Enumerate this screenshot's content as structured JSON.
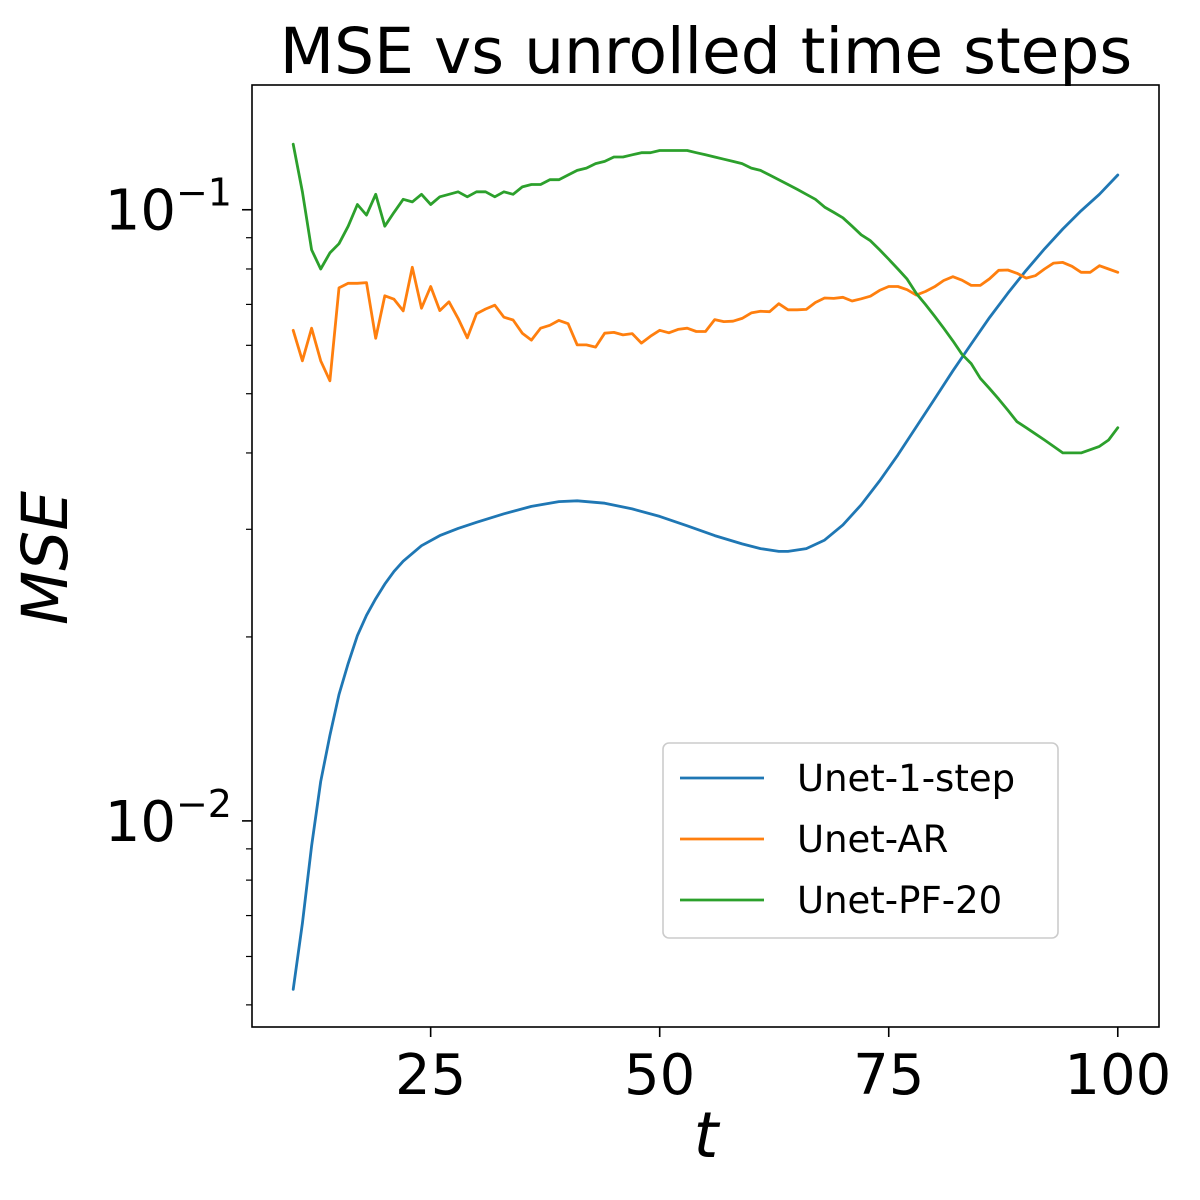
{
  "chart_data": {
    "type": "line",
    "title": "MSE vs unrolled time steps",
    "xlabel": "t",
    "ylabel": "MSE",
    "xlim": [
      5.5,
      104.5
    ],
    "ylim": [
      0.0046,
      0.16
    ],
    "yscale": "log",
    "xticks": [
      25,
      50,
      75,
      100
    ],
    "xtick_labels": [
      "25",
      "50",
      "75",
      "100"
    ],
    "yticks": [
      {
        "value": 0.01,
        "base": "10",
        "exp": "−2"
      },
      {
        "value": 0.1,
        "base": "10",
        "exp": "−1"
      }
    ],
    "grid": false,
    "legend": {
      "position": "lower-right"
    },
    "series": [
      {
        "name": "Unet-1-step",
        "color": "#1f77b4",
        "x": [
          10,
          11,
          12,
          13,
          14,
          15,
          16,
          17,
          18,
          19,
          20,
          21,
          22,
          24,
          26,
          28,
          30,
          33,
          36,
          39,
          41,
          44,
          47,
          50,
          53,
          56,
          59,
          61,
          63,
          64,
          66,
          68,
          70,
          72,
          74,
          76,
          78,
          80,
          82,
          84,
          86,
          88,
          90,
          92,
          94,
          96,
          98,
          100
        ],
        "values": [
          0.0053,
          0.0068,
          0.0091,
          0.0116,
          0.0138,
          0.0161,
          0.0181,
          0.0201,
          0.0217,
          0.0231,
          0.0244,
          0.0256,
          0.0266,
          0.0282,
          0.0293,
          0.0301,
          0.0308,
          0.0318,
          0.0327,
          0.0333,
          0.0334,
          0.0331,
          0.0324,
          0.0315,
          0.0304,
          0.0293,
          0.0284,
          0.0279,
          0.0276,
          0.0276,
          0.0279,
          0.0288,
          0.0305,
          0.0329,
          0.036,
          0.0397,
          0.0441,
          0.049,
          0.0545,
          0.0603,
          0.0666,
          0.073,
          0.0796,
          0.0863,
          0.093,
          0.0996,
          0.106,
          0.114
        ]
      },
      {
        "name": "Unet-AR",
        "color": "#ff7f0e",
        "x": [
          10,
          11,
          12,
          13,
          14,
          15,
          16,
          17,
          18,
          19,
          20,
          21,
          22,
          23,
          24,
          25,
          26,
          27,
          28,
          29,
          30,
          31,
          32,
          33,
          34,
          35,
          36,
          37,
          38,
          39,
          40,
          41,
          42,
          43,
          44,
          45,
          46,
          47,
          48,
          49,
          50,
          51,
          52,
          53,
          54,
          55,
          56,
          57,
          58,
          59,
          60,
          61,
          62,
          63,
          64,
          65,
          66,
          67,
          68,
          69,
          70,
          71,
          72,
          73,
          74,
          75,
          76,
          77,
          78,
          79,
          80,
          81,
          82,
          83,
          84,
          85,
          86,
          87,
          88,
          89,
          90,
          91,
          92,
          93,
          94,
          95,
          96,
          97,
          98,
          99,
          100
        ],
        "values": [
          0.0635,
          0.0566,
          0.064,
          0.0566,
          0.0525,
          0.0745,
          0.0758,
          0.0758,
          0.076,
          0.0616,
          0.0723,
          0.0714,
          0.0683,
          0.0805,
          0.069,
          0.0749,
          0.0684,
          0.0707,
          0.0664,
          0.0617,
          0.0676,
          0.0688,
          0.0698,
          0.0667,
          0.066,
          0.0628,
          0.0612,
          0.064,
          0.0647,
          0.0659,
          0.0651,
          0.0601,
          0.0601,
          0.0596,
          0.0628,
          0.063,
          0.0624,
          0.0627,
          0.0605,
          0.0621,
          0.0635,
          0.0629,
          0.0637,
          0.064,
          0.0632,
          0.0632,
          0.0661,
          0.0656,
          0.0657,
          0.0664,
          0.0678,
          0.0682,
          0.0681,
          0.0702,
          0.0686,
          0.0686,
          0.0687,
          0.0705,
          0.0717,
          0.0716,
          0.0719,
          0.0709,
          0.0715,
          0.0722,
          0.0738,
          0.0749,
          0.0749,
          0.074,
          0.0725,
          0.0735,
          0.0748,
          0.0766,
          0.0777,
          0.0767,
          0.0752,
          0.0752,
          0.0771,
          0.0796,
          0.0797,
          0.0787,
          0.0773,
          0.078,
          0.08,
          0.0818,
          0.082,
          0.0808,
          0.079,
          0.079,
          0.081,
          0.08,
          0.079
        ]
      },
      {
        "name": "Unet-PF-20",
        "color": "#2ca02c",
        "x": [
          10,
          11,
          12,
          13,
          14,
          15,
          16,
          17,
          18,
          19,
          20,
          21,
          22,
          23,
          24,
          25,
          26,
          27,
          28,
          29,
          30,
          31,
          32,
          33,
          34,
          35,
          36,
          37,
          38,
          39,
          40,
          41,
          42,
          43,
          44,
          45,
          46,
          47,
          48,
          49,
          50,
          51,
          52,
          53,
          54,
          55,
          56,
          57,
          58,
          59,
          60,
          61,
          62,
          63,
          64,
          65,
          66,
          67,
          68,
          69,
          70,
          71,
          72,
          73,
          74,
          75,
          76,
          77,
          78,
          79,
          80,
          81,
          82,
          83,
          84,
          85,
          86,
          87,
          88,
          89,
          90,
          91,
          92,
          93,
          94,
          95,
          96,
          97,
          98,
          99,
          100
        ],
        "values": [
          0.128,
          0.107,
          0.086,
          0.08,
          0.085,
          0.088,
          0.094,
          0.102,
          0.098,
          0.106,
          0.094,
          0.099,
          0.104,
          0.103,
          0.106,
          0.102,
          0.105,
          0.106,
          0.107,
          0.105,
          0.107,
          0.107,
          0.105,
          0.107,
          0.106,
          0.109,
          0.11,
          0.11,
          0.112,
          0.112,
          0.114,
          0.116,
          0.117,
          0.119,
          0.12,
          0.122,
          0.122,
          0.123,
          0.124,
          0.124,
          0.125,
          0.125,
          0.125,
          0.125,
          0.124,
          0.123,
          0.122,
          0.121,
          0.12,
          0.119,
          0.117,
          0.116,
          0.114,
          0.112,
          0.11,
          0.108,
          0.106,
          0.104,
          0.101,
          0.099,
          0.097,
          0.094,
          0.091,
          0.089,
          0.086,
          0.083,
          0.08,
          0.077,
          0.073,
          0.07,
          0.067,
          0.064,
          0.061,
          0.058,
          0.056,
          0.053,
          0.051,
          0.049,
          0.047,
          0.045,
          0.044,
          0.043,
          0.042,
          0.041,
          0.04,
          0.04,
          0.04,
          0.0405,
          0.041,
          0.042,
          0.044
        ]
      }
    ]
  }
}
